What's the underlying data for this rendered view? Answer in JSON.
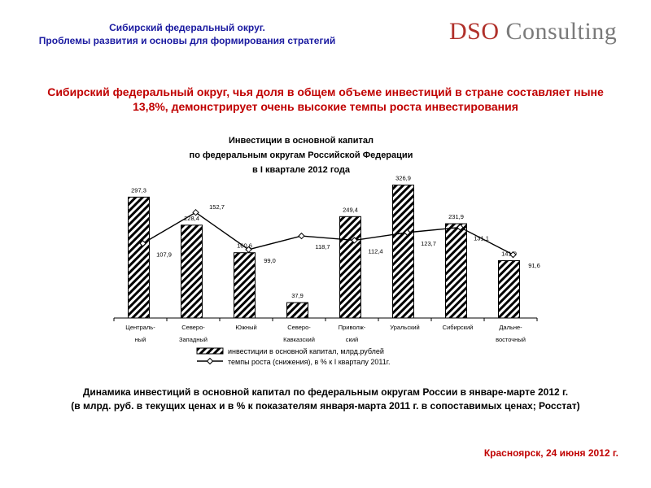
{
  "header": {
    "line1": "Сибирский федеральный округ.",
    "line2": "Проблемы развития и основы для формирования стратегий"
  },
  "logo": {
    "part1": "DSO",
    "part2": " Consulting"
  },
  "headline": {
    "line1": "Сибирский федеральный округ, чья доля в общем объеме инвестиций в стране составляет ныне",
    "line2": "13,8%, демонстрирует очень высокие темпы роста инвестирования"
  },
  "caption": {
    "line1": "Динамика инвестиций в основной капитал по федеральным округам России в январе-марте 2012 г.",
    "line2": "(в млрд. руб. в текущих ценах и в % к показателям января-марта 2011 г. в сопоставимых ценах; Росстат)"
  },
  "footer": {
    "text": "Красноярск, 24 июня 2012 г."
  },
  "chart_data": {
    "type": "bar",
    "title": [
      "Инвестиции в основной капитал",
      "по федеральным округам Российской Федерации",
      "в I квартале 2012 года"
    ],
    "categories": [
      [
        "Централь-",
        "ный"
      ],
      [
        "Северо-",
        "Западный"
      ],
      [
        "Южный"
      ],
      [
        "Северо-",
        "Кавказский"
      ],
      [
        "Приволж-",
        "ский"
      ],
      [
        "Уральский"
      ],
      [
        "Сибирский"
      ],
      [
        "Дальне-",
        "восточный"
      ]
    ],
    "series": [
      {
        "name": "инвестиции в основной капитал, млрд.рублей",
        "kind": "bar",
        "values": [
          297.3,
          228.4,
          160.6,
          37.9,
          249.4,
          326.9,
          231.9,
          141.0
        ],
        "labels": [
          "297,3",
          "228,4",
          "160,6",
          "37,9",
          "249,4",
          "326,9",
          "231,9",
          "141,0"
        ]
      },
      {
        "name": "темпы роста (снижения), в % к I кварталу 2011г.",
        "kind": "line",
        "values": [
          107.9,
          152.7,
          99.0,
          118.7,
          112.4,
          123.7,
          131.1,
          91.6
        ],
        "labels": [
          "107,9",
          "152,7",
          "99,0",
          "118,7",
          "112,4",
          "123,7",
          "131,1",
          "91,6"
        ]
      }
    ],
    "bar_ylim": [
      0,
      340
    ],
    "line_ylim": [
      0,
      200
    ],
    "legend": "bottom"
  }
}
